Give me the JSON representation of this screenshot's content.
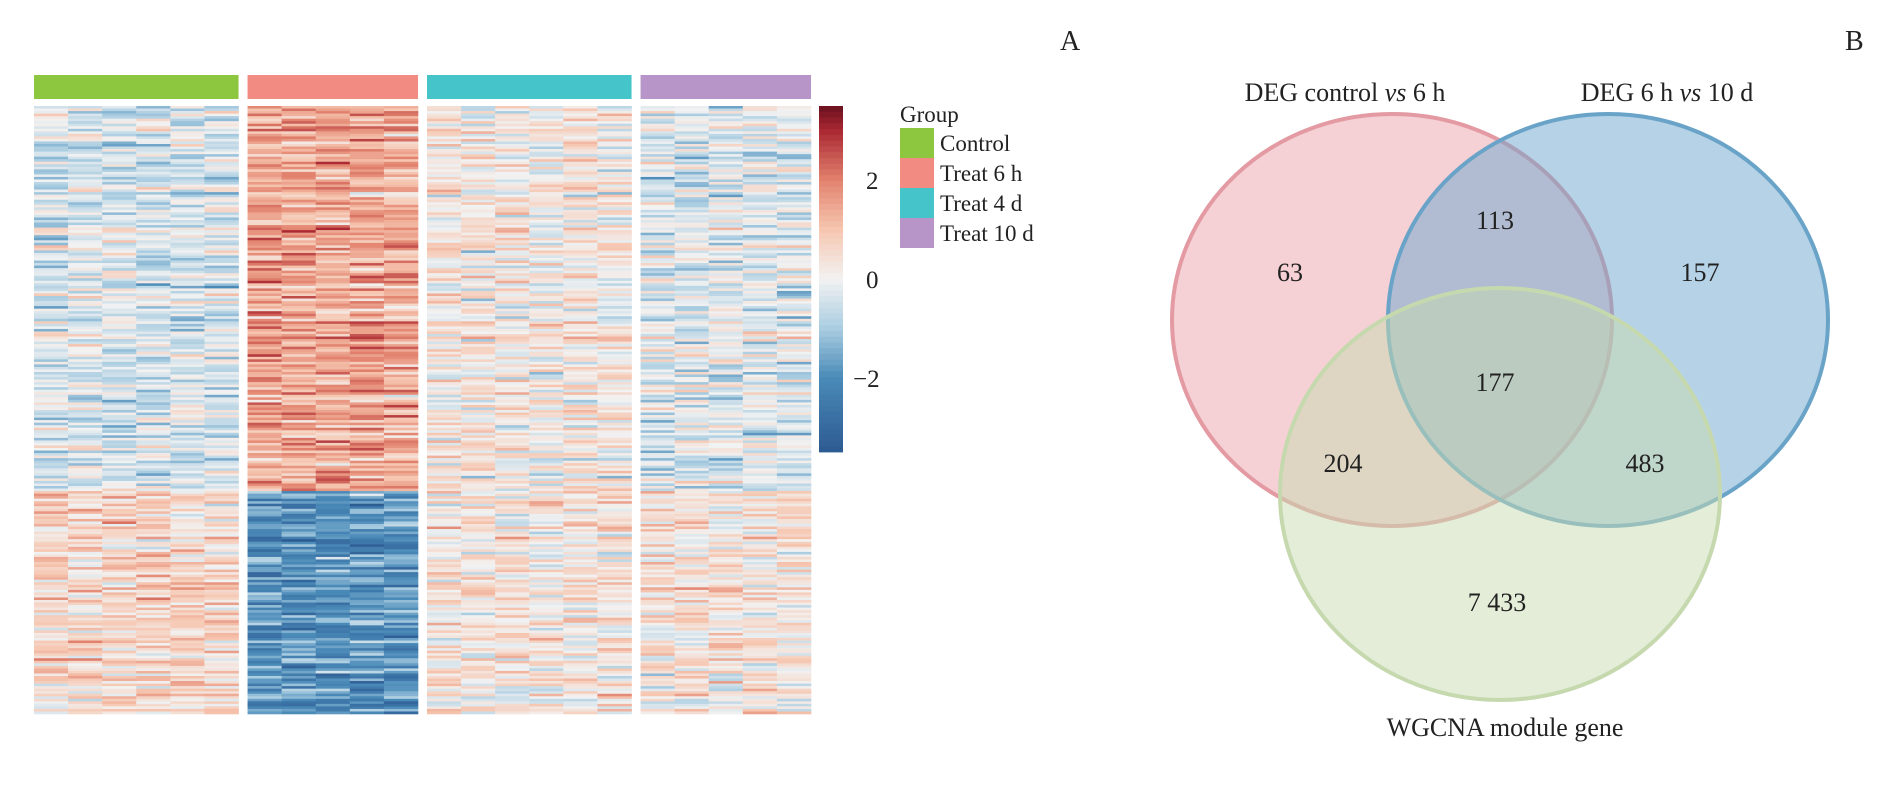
{
  "panels": {
    "a_label": "A",
    "b_label": "B"
  },
  "chart_data": [
    {
      "type": "heatmap",
      "groups": [
        {
          "name": "Control",
          "color": "#8dc63f",
          "columns": 6
        },
        {
          "name": "Treat 6 h",
          "color": "#f28b82",
          "columns": 5
        },
        {
          "name": "Treat 4 d",
          "color": "#45c4c9",
          "columns": 6
        },
        {
          "name": "Treat 10 d",
          "color": "#b895c8",
          "columns": 5
        }
      ],
      "legend_title": "Group",
      "legend_placement": "right",
      "color_scale": {
        "range": [
          -3.5,
          3.5
        ],
        "ticks": [
          {
            "value": 2,
            "label": "2"
          },
          {
            "value": 0,
            "label": "0"
          },
          {
            "value": -2,
            "label": "−2"
          }
        ],
        "low_color": "#2c5a92",
        "mid_color": "#f2f2f2",
        "high_color": "#6b1020"
      }
    },
    {
      "type": "venn",
      "sets": [
        {
          "name": "DEG control vs 6 h",
          "name_parts": [
            "DEG control ",
            "vs",
            " 6 h"
          ],
          "color": "#e39aa3"
        },
        {
          "name": "DEG 6 h vs 10 d",
          "name_parts": [
            "DEG 6 h ",
            "vs",
            " 10 d"
          ],
          "color": "#6aa3c8"
        },
        {
          "name": "WGCNA module gene",
          "color": "#c6d9ae"
        }
      ],
      "regions": {
        "control_6h_only": "63",
        "control_6h_and_6h_10d": "113",
        "6h_10d_only": "157",
        "all_three": "177",
        "control_6h_and_wgcna": "204",
        "6h_10d_and_wgcna": "483",
        "wgcna_only": "7 433"
      }
    }
  ]
}
